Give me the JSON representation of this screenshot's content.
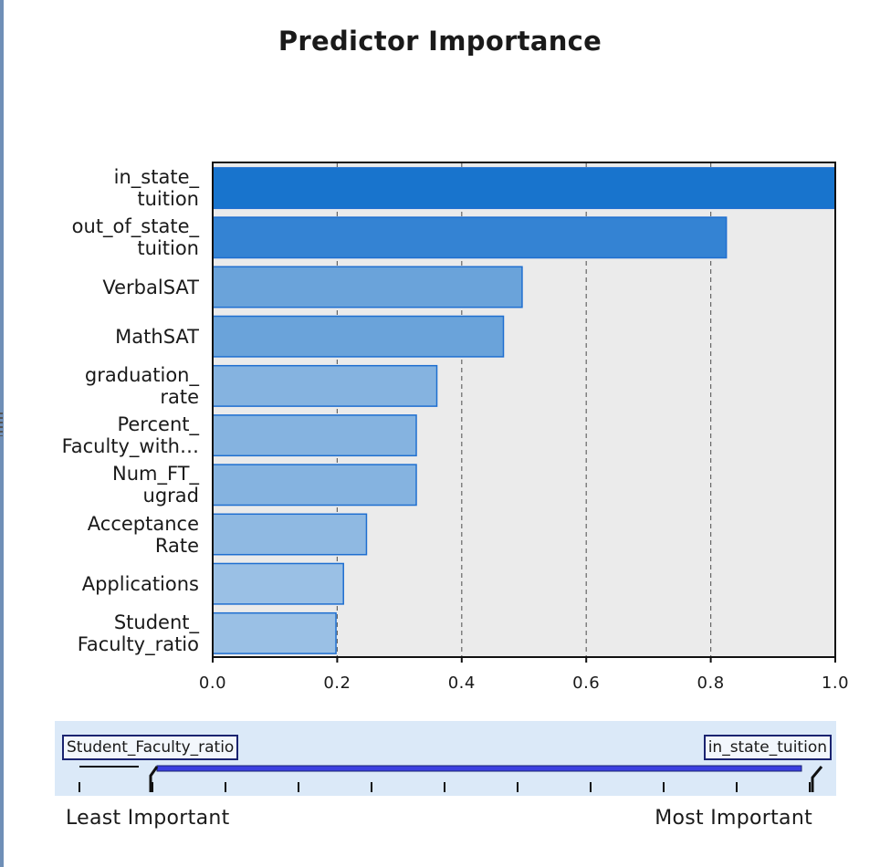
{
  "chart_data": {
    "type": "bar",
    "orientation": "horizontal",
    "title": "Predictor Importance",
    "categories": [
      "in_state_\ntuition",
      "out_of_state_\ntuition",
      "VerbalSAT",
      "MathSAT",
      "graduation_\nrate",
      "Percent_\nFaculty_with…",
      "Num_FT_\nugrad",
      "Acceptance\nRate",
      "Applications",
      "Student_\nFaculty_ratio"
    ],
    "values": [
      1.0,
      0.825,
      0.497,
      0.467,
      0.36,
      0.327,
      0.327,
      0.247,
      0.21,
      0.198
    ],
    "xlim": [
      0,
      1.0
    ],
    "xticks": [
      "0.0",
      "0.2",
      "0.4",
      "0.6",
      "0.8",
      "1.0"
    ],
    "grid": "vertical dashed at 0.2, 0.4, 0.6, 0.8",
    "bar_colors": [
      "#1874cd",
      "#3483d3",
      "#6aa3da",
      "#6aa3da",
      "#85b3e0",
      "#85b3e0",
      "#85b3e0",
      "#8fb9e2",
      "#9ac0e5",
      "#9ac0e5"
    ],
    "bar_border": "#1f6fd0",
    "plot_background": "#ebebeb"
  },
  "slider": {
    "min_label": "Student_Faculty_ratio",
    "max_label": "in_state_tuition",
    "least_label": "Least Important",
    "most_label": "Most Important",
    "tick_count": 11
  }
}
